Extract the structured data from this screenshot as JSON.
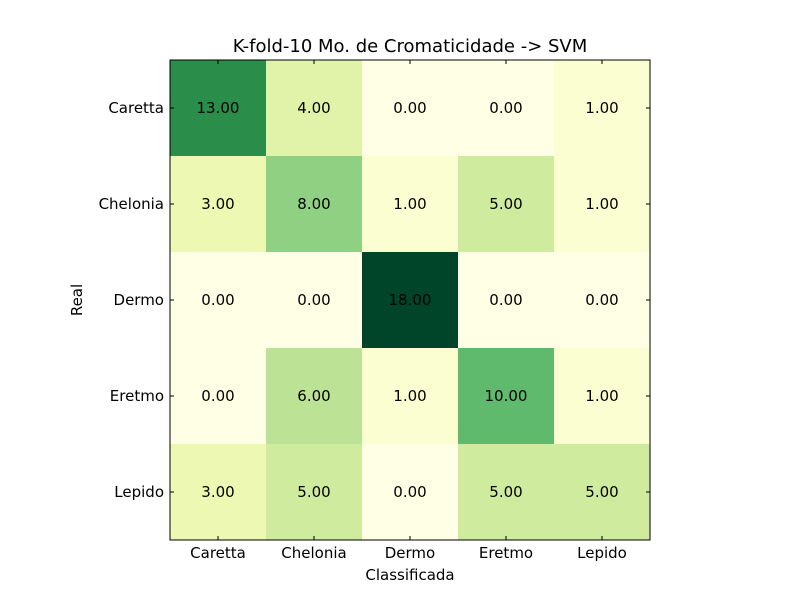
{
  "chart_data": {
    "type": "heatmap",
    "title": "K-fold-10 Mo. de Cromaticidade -> SVM",
    "xlabel": "Classificada",
    "ylabel": "Real",
    "x_categories": [
      "Caretta",
      "Chelonia",
      "Dermo",
      "Eretmo",
      "Lepido"
    ],
    "y_categories": [
      "Caretta",
      "Chelonia",
      "Dermo",
      "Eretmo",
      "Lepido"
    ],
    "values": [
      [
        13,
        4,
        0,
        0,
        1
      ],
      [
        3,
        8,
        1,
        5,
        1
      ],
      [
        0,
        0,
        18,
        0,
        0
      ],
      [
        0,
        6,
        1,
        10,
        1
      ],
      [
        3,
        5,
        0,
        5,
        5
      ]
    ],
    "value_labels": [
      [
        "13.00",
        "4.00",
        "0.00",
        "0.00",
        "1.00"
      ],
      [
        "3.00",
        "8.00",
        "1.00",
        "5.00",
        "1.00"
      ],
      [
        "0.00",
        "0.00",
        "18.00",
        "0.00",
        "0.00"
      ],
      [
        "0.00",
        "6.00",
        "1.00",
        "10.00",
        "1.00"
      ],
      [
        "3.00",
        "5.00",
        "0.00",
        "5.00",
        "5.00"
      ]
    ],
    "colormap": "YlGn",
    "value_range": [
      0,
      18
    ],
    "grid": false,
    "legend": "none"
  }
}
